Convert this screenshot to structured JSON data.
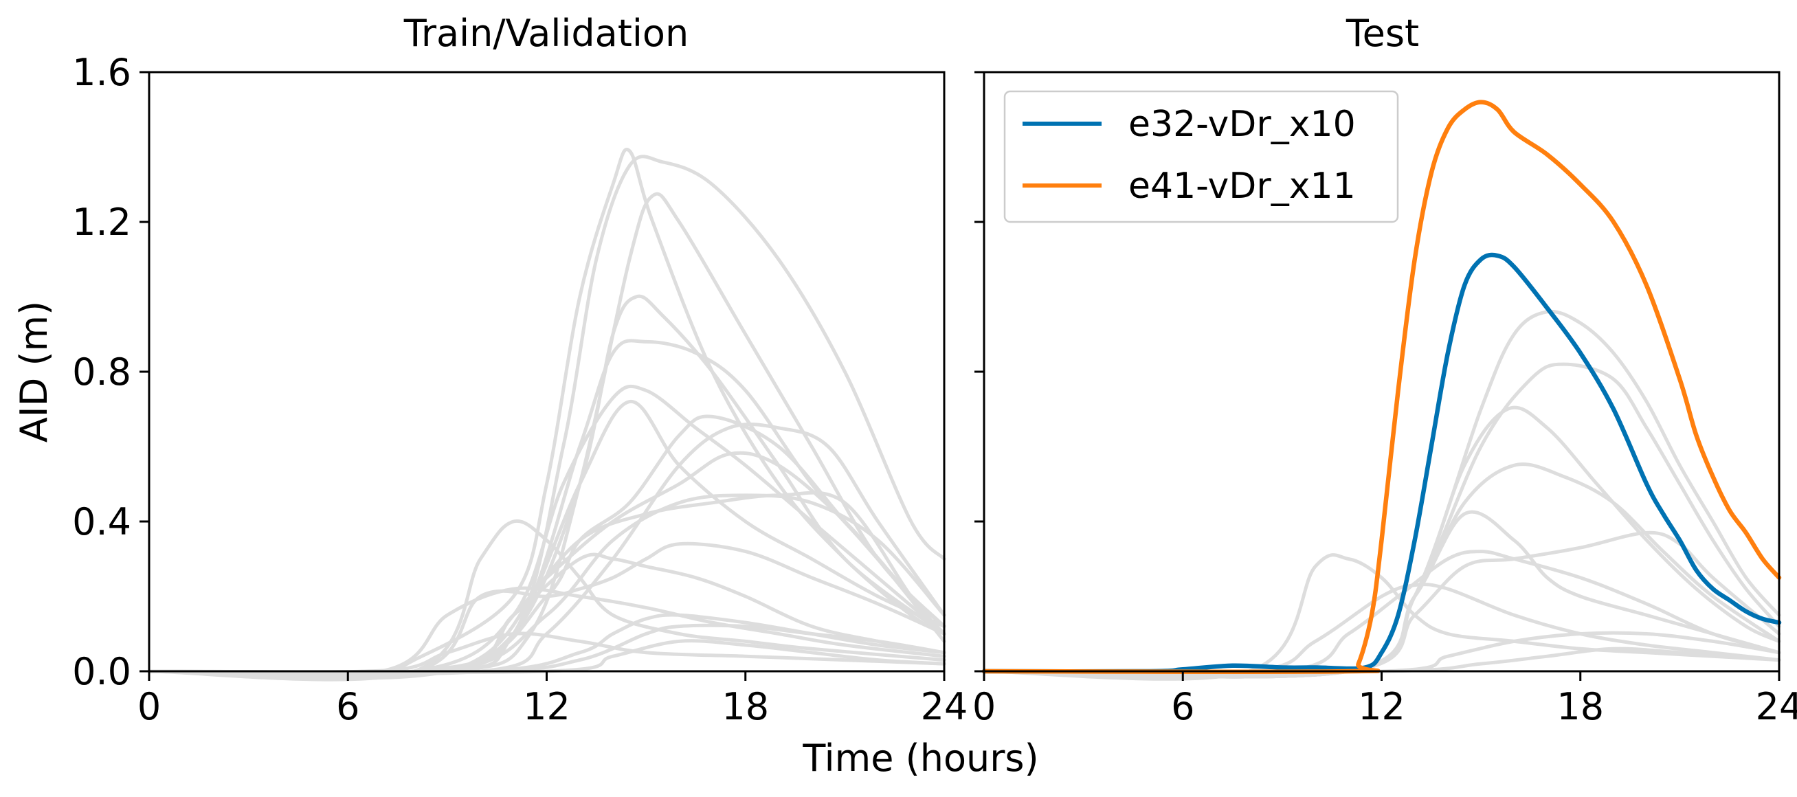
{
  "chart_data": [
    {
      "type": "line",
      "title": "Train/Validation",
      "xlabel": "Time (hours)",
      "ylabel": "AID (m)",
      "xlim": [
        0,
        24
      ],
      "ylim": [
        0,
        1.6
      ],
      "xticks": [
        "0",
        "6",
        "12",
        "18",
        "24"
      ],
      "yticks": [
        "0.0",
        "0.4",
        "0.8",
        "1.2",
        "1.6"
      ],
      "background_color": "#dddddd",
      "background_series": [
        {
          "x": [
            0,
            6.5,
            8,
            11,
            12,
            13,
            14,
            14.5,
            15.2,
            17,
            19,
            21,
            23,
            24
          ],
          "y": [
            0,
            0,
            0.03,
            0.2,
            0.5,
            1.0,
            1.3,
            1.39,
            1.2,
            0.8,
            0.5,
            0.3,
            0.15,
            0.1
          ]
        },
        {
          "x": [
            0,
            8,
            11,
            12.5,
            13.5,
            14.5,
            15.5,
            17,
            19,
            21,
            23,
            24
          ],
          "y": [
            0,
            0,
            0.1,
            0.6,
            1.1,
            1.35,
            1.36,
            1.3,
            1.1,
            0.8,
            0.4,
            0.3
          ]
        },
        {
          "x": [
            0,
            9,
            11.5,
            13,
            14.5,
            15.2,
            16,
            18,
            20,
            22,
            24
          ],
          "y": [
            0,
            0,
            0.1,
            0.5,
            1.1,
            1.27,
            1.2,
            0.9,
            0.6,
            0.3,
            0.12
          ]
        },
        {
          "x": [
            0,
            8,
            11,
            13,
            14,
            14.7,
            15.5,
            17,
            19,
            21,
            24
          ],
          "y": [
            0,
            0,
            0.1,
            0.5,
            0.9,
            1.0,
            0.95,
            0.8,
            0.55,
            0.3,
            0.1
          ]
        },
        {
          "x": [
            0,
            8,
            11,
            13,
            14,
            15,
            16.5,
            18,
            20,
            22,
            24
          ],
          "y": [
            0,
            0,
            0.1,
            0.6,
            0.85,
            0.88,
            0.85,
            0.75,
            0.5,
            0.3,
            0.08
          ]
        },
        {
          "x": [
            0,
            8,
            11,
            12.5,
            14,
            15,
            16.5,
            18,
            20,
            22,
            24
          ],
          "y": [
            0,
            0,
            0.15,
            0.5,
            0.73,
            0.75,
            0.65,
            0.55,
            0.4,
            0.25,
            0.1
          ]
        },
        {
          "x": [
            0,
            9,
            11,
            13,
            14.5,
            16,
            18,
            20,
            22,
            24
          ],
          "y": [
            0,
            0,
            0.1,
            0.5,
            0.72,
            0.55,
            0.4,
            0.3,
            0.2,
            0.12
          ]
        },
        {
          "x": [
            0,
            9,
            12,
            13,
            14.5,
            16,
            17,
            19,
            21,
            23,
            24
          ],
          "y": [
            0,
            0,
            0.2,
            0.35,
            0.45,
            0.63,
            0.68,
            0.6,
            0.4,
            0.2,
            0.12
          ]
        },
        {
          "x": [
            0,
            10,
            12,
            14,
            16,
            17.5,
            19,
            20.5,
            22,
            24
          ],
          "y": [
            0,
            0,
            0.1,
            0.3,
            0.55,
            0.65,
            0.65,
            0.6,
            0.4,
            0.15
          ]
        },
        {
          "x": [
            0,
            9,
            12,
            14,
            16,
            17.5,
            19,
            21,
            23,
            24
          ],
          "y": [
            0,
            0,
            0.25,
            0.4,
            0.5,
            0.58,
            0.55,
            0.4,
            0.2,
            0.12
          ]
        },
        {
          "x": [
            0,
            9,
            12,
            14,
            16,
            18,
            20,
            22,
            24
          ],
          "y": [
            0,
            0,
            0.15,
            0.35,
            0.45,
            0.47,
            0.45,
            0.35,
            0.15
          ]
        },
        {
          "x": [
            0,
            9,
            11,
            13,
            15,
            17,
            19,
            21,
            23,
            24
          ],
          "y": [
            0,
            0,
            0.15,
            0.35,
            0.42,
            0.45,
            0.47,
            0.45,
            0.2,
            0.1
          ]
        },
        {
          "x": [
            0,
            8,
            10,
            11,
            12,
            13,
            14,
            16,
            18,
            20,
            24
          ],
          "y": [
            0,
            0,
            0.3,
            0.4,
            0.35,
            0.25,
            0.15,
            0.1,
            0.08,
            0.06,
            0.03
          ]
        },
        {
          "x": [
            0,
            8,
            10,
            12,
            13,
            14,
            15,
            16,
            18,
            20,
            22,
            24
          ],
          "y": [
            0,
            0,
            0.2,
            0.2,
            0.22,
            0.25,
            0.3,
            0.34,
            0.32,
            0.25,
            0.18,
            0.1
          ]
        },
        {
          "x": [
            0,
            9,
            11,
            13,
            14,
            15,
            16.5,
            18,
            20,
            22,
            24
          ],
          "y": [
            0,
            0,
            0.15,
            0.3,
            0.3,
            0.28,
            0.25,
            0.2,
            0.12,
            0.08,
            0.05
          ]
        },
        {
          "x": [
            0,
            10,
            13,
            14,
            15,
            16,
            18,
            20,
            22,
            24
          ],
          "y": [
            0,
            0,
            0.05,
            0.1,
            0.14,
            0.15,
            0.13,
            0.1,
            0.07,
            0.05
          ]
        },
        {
          "x": [
            0,
            7,
            9,
            11,
            13,
            15,
            17,
            19,
            21,
            24
          ],
          "y": [
            0,
            0,
            0.15,
            0.22,
            0.2,
            0.17,
            0.13,
            0.1,
            0.07,
            0.04
          ]
        },
        {
          "x": [
            0,
            10,
            13,
            15,
            16,
            18,
            20,
            22,
            24
          ],
          "y": [
            0,
            0,
            0.03,
            0.1,
            0.12,
            0.12,
            0.1,
            0.08,
            0.05
          ]
        },
        {
          "x": [
            0,
            7,
            9,
            11,
            13,
            15,
            18,
            21,
            24
          ],
          "y": [
            0,
            0,
            0.05,
            0.1,
            0.08,
            0.05,
            0.04,
            0.03,
            0.02
          ]
        },
        {
          "x": [
            0,
            12,
            14,
            16,
            18,
            20,
            22,
            24
          ],
          "y": [
            0,
            0,
            0.04,
            0.08,
            0.07,
            0.05,
            0.03,
            0.02
          ]
        }
      ]
    },
    {
      "type": "line",
      "title": "Test",
      "xlabel": "Time (hours)",
      "xlim": [
        0,
        24
      ],
      "ylim": [
        0,
        1.6
      ],
      "xticks": [
        "0",
        "6",
        "12",
        "18",
        "24"
      ],
      "legend": "top-left",
      "background_color": "#dddddd",
      "background_series": [
        {
          "x": [
            0,
            11,
            13,
            15,
            16,
            17,
            18,
            19,
            20,
            21,
            22,
            23,
            24
          ],
          "y": [
            0,
            0,
            0.2,
            0.7,
            0.9,
            0.96,
            0.93,
            0.85,
            0.72,
            0.55,
            0.4,
            0.25,
            0.15
          ]
        },
        {
          "x": [
            0,
            11,
            13,
            15,
            16.5,
            17.5,
            19,
            20,
            21,
            22,
            23,
            24
          ],
          "y": [
            0,
            0,
            0.2,
            0.6,
            0.78,
            0.82,
            0.78,
            0.65,
            0.5,
            0.35,
            0.22,
            0.12
          ]
        },
        {
          "x": [
            0,
            11,
            13,
            14.5,
            15.8,
            17,
            18.5,
            20,
            21.5,
            23,
            24
          ],
          "y": [
            0,
            0,
            0.2,
            0.55,
            0.7,
            0.65,
            0.5,
            0.35,
            0.22,
            0.12,
            0.08
          ]
        },
        {
          "x": [
            0,
            11,
            13,
            14.5,
            16,
            17.5,
            19,
            20.5,
            22,
            24
          ],
          "y": [
            0,
            0,
            0.2,
            0.45,
            0.55,
            0.52,
            0.45,
            0.32,
            0.2,
            0.08
          ]
        },
        {
          "x": [
            0,
            11,
            13,
            14.5,
            16,
            17,
            18,
            20,
            22,
            24
          ],
          "y": [
            0,
            0,
            0.2,
            0.42,
            0.35,
            0.25,
            0.2,
            0.15,
            0.1,
            0.05
          ]
        },
        {
          "x": [
            0,
            11,
            13,
            14.5,
            16,
            18,
            20,
            21,
            22,
            24
          ],
          "y": [
            0,
            0,
            0.15,
            0.28,
            0.3,
            0.33,
            0.37,
            0.34,
            0.25,
            0.1
          ]
        },
        {
          "x": [
            0,
            8,
            10,
            11,
            12,
            13,
            14,
            16,
            18,
            20,
            24
          ],
          "y": [
            0,
            0,
            0.28,
            0.3,
            0.25,
            0.15,
            0.1,
            0.08,
            0.06,
            0.05,
            0.03
          ]
        },
        {
          "x": [
            0,
            9,
            11,
            12.5,
            14,
            15,
            16,
            18,
            20,
            22,
            24
          ],
          "y": [
            0,
            0,
            0.1,
            0.2,
            0.3,
            0.32,
            0.3,
            0.25,
            0.18,
            0.1,
            0.05
          ]
        },
        {
          "x": [
            0,
            8,
            10,
            12,
            13,
            14,
            16,
            18,
            20,
            22,
            24
          ],
          "y": [
            0,
            0,
            0.08,
            0.2,
            0.23,
            0.22,
            0.15,
            0.1,
            0.07,
            0.05,
            0.03
          ]
        },
        {
          "x": [
            0,
            12,
            14,
            16,
            18,
            20,
            22,
            24
          ],
          "y": [
            0,
            0,
            0.04,
            0.08,
            0.1,
            0.1,
            0.08,
            0.05
          ]
        },
        {
          "x": [
            0,
            12,
            15,
            17,
            19,
            21,
            24
          ],
          "y": [
            0,
            0,
            0.02,
            0.04,
            0.06,
            0.05,
            0.03
          ]
        }
      ],
      "series": [
        {
          "name": "e32-vDr_x10",
          "color": "#0072b2",
          "x": [
            0,
            5,
            6,
            7.5,
            9,
            10,
            11.5,
            12,
            12.5,
            13,
            13.5,
            14,
            14.5,
            15,
            15.5,
            16,
            17,
            18,
            19,
            20,
            20.5,
            21,
            21.5,
            22,
            22.5,
            23,
            23.5,
            24
          ],
          "y": [
            0,
            0,
            0.005,
            0.015,
            0.01,
            0.01,
            0.01,
            0.05,
            0.15,
            0.35,
            0.6,
            0.85,
            1.03,
            1.1,
            1.11,
            1.08,
            0.97,
            0.85,
            0.7,
            0.5,
            0.42,
            0.35,
            0.27,
            0.22,
            0.19,
            0.16,
            0.14,
            0.13
          ]
        },
        {
          "name": "e41-vDr_x11",
          "color": "#ff7f0e",
          "x": [
            0,
            11,
            11.3,
            11.7,
            12,
            12.5,
            13,
            13.5,
            14,
            14.5,
            15,
            15.5,
            16,
            17,
            18,
            19,
            20,
            21,
            21.5,
            22,
            22.5,
            23,
            23.5,
            24
          ],
          "y": [
            0,
            0,
            0.02,
            0.15,
            0.35,
            0.75,
            1.1,
            1.33,
            1.45,
            1.5,
            1.52,
            1.5,
            1.44,
            1.38,
            1.3,
            1.2,
            1.03,
            0.78,
            0.63,
            0.52,
            0.43,
            0.37,
            0.3,
            0.25
          ]
        }
      ]
    }
  ]
}
